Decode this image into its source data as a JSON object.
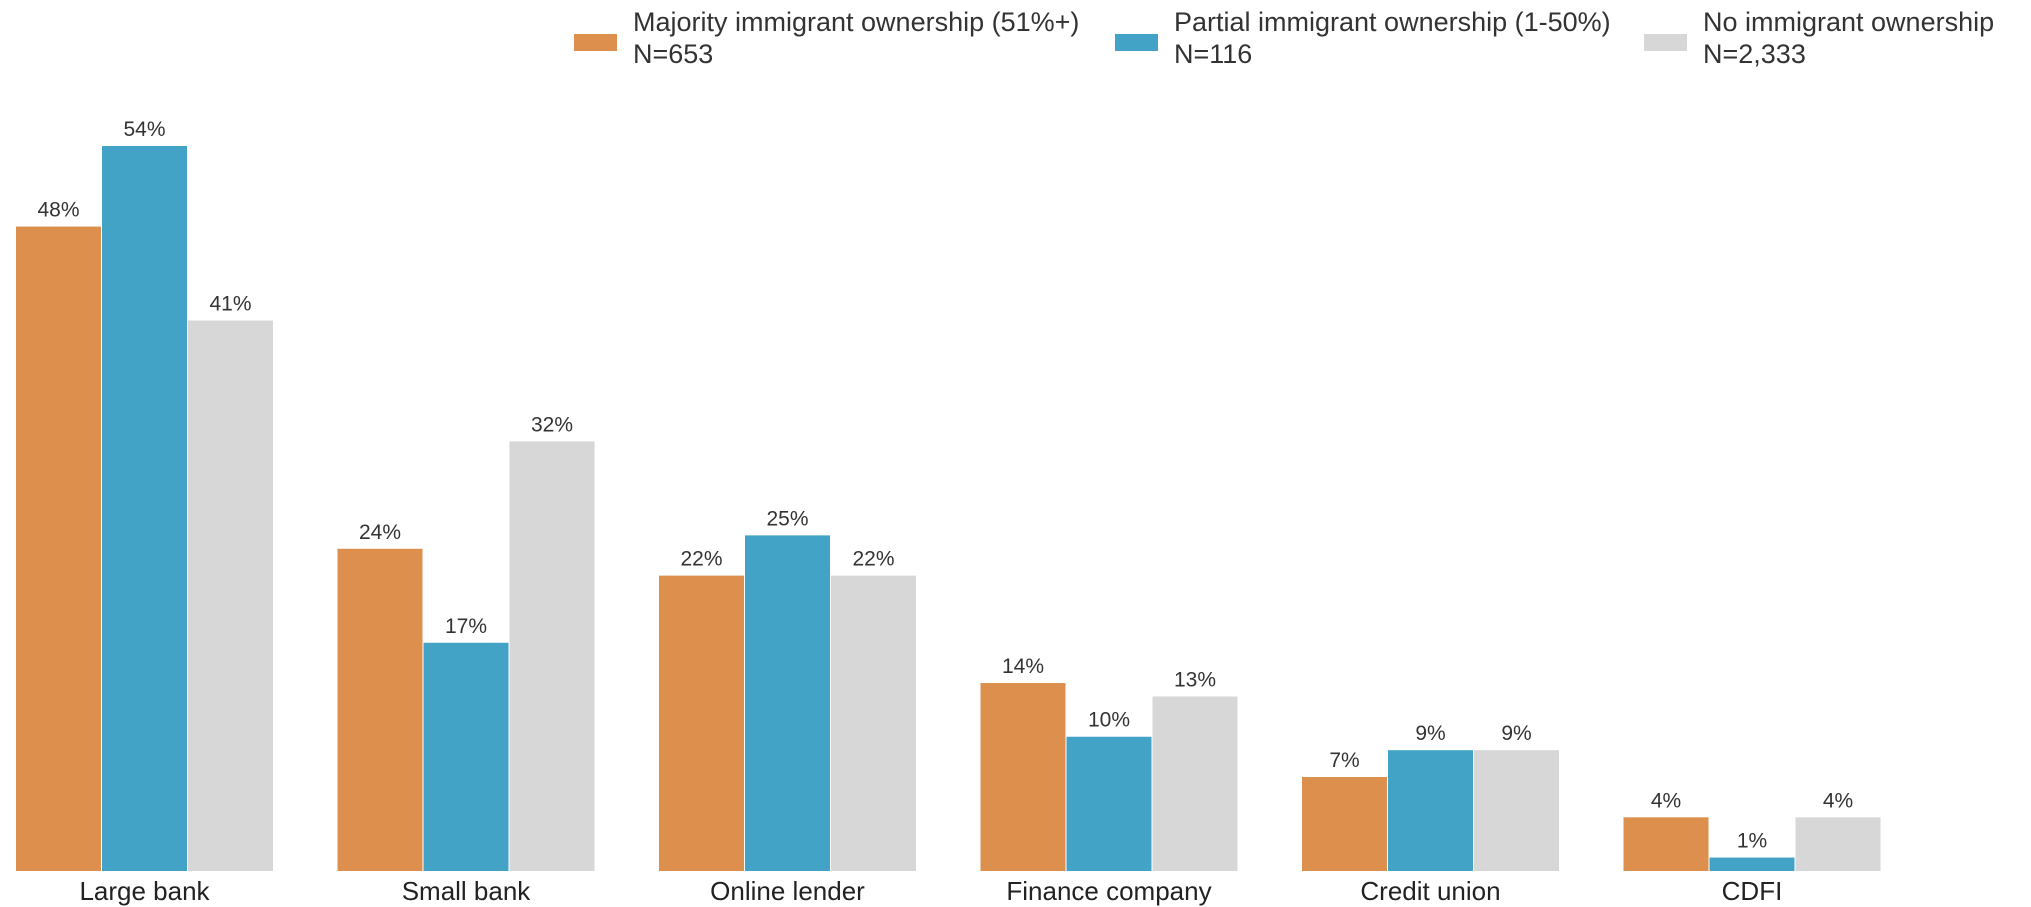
{
  "chart_data": {
    "type": "bar",
    "categories": [
      "Large bank",
      "Small bank",
      "Online lender",
      "Finance company",
      "Credit union",
      "CDFI"
    ],
    "series": [
      {
        "name": "Majority immigrant ownership (51%+)",
        "n_label": "N=653",
        "color": "#DD904D",
        "values": [
          48,
          24,
          22,
          14,
          7,
          4
        ],
        "labels": [
          "48%",
          "24%",
          "22%",
          "14%",
          "7%",
          "4%"
        ]
      },
      {
        "name": "Partial immigrant ownership (1-50%)",
        "n_label": "N=116",
        "color": "#43A3C7",
        "values": [
          54,
          17,
          25,
          10,
          9,
          1
        ],
        "labels": [
          "54%",
          "17%",
          "25%",
          "10%",
          "9%",
          "1%"
        ]
      },
      {
        "name": "No immigrant ownership",
        "n_label": "N=2,333",
        "color": "#D7D7D7",
        "values": [
          41,
          32,
          22,
          13,
          9,
          4
        ],
        "labels": [
          "41%",
          "32%",
          "22%",
          "13%",
          "9%",
          "4%"
        ]
      }
    ],
    "ylim": [
      0,
      54
    ],
    "legend_position": "top-right",
    "grid": false
  }
}
